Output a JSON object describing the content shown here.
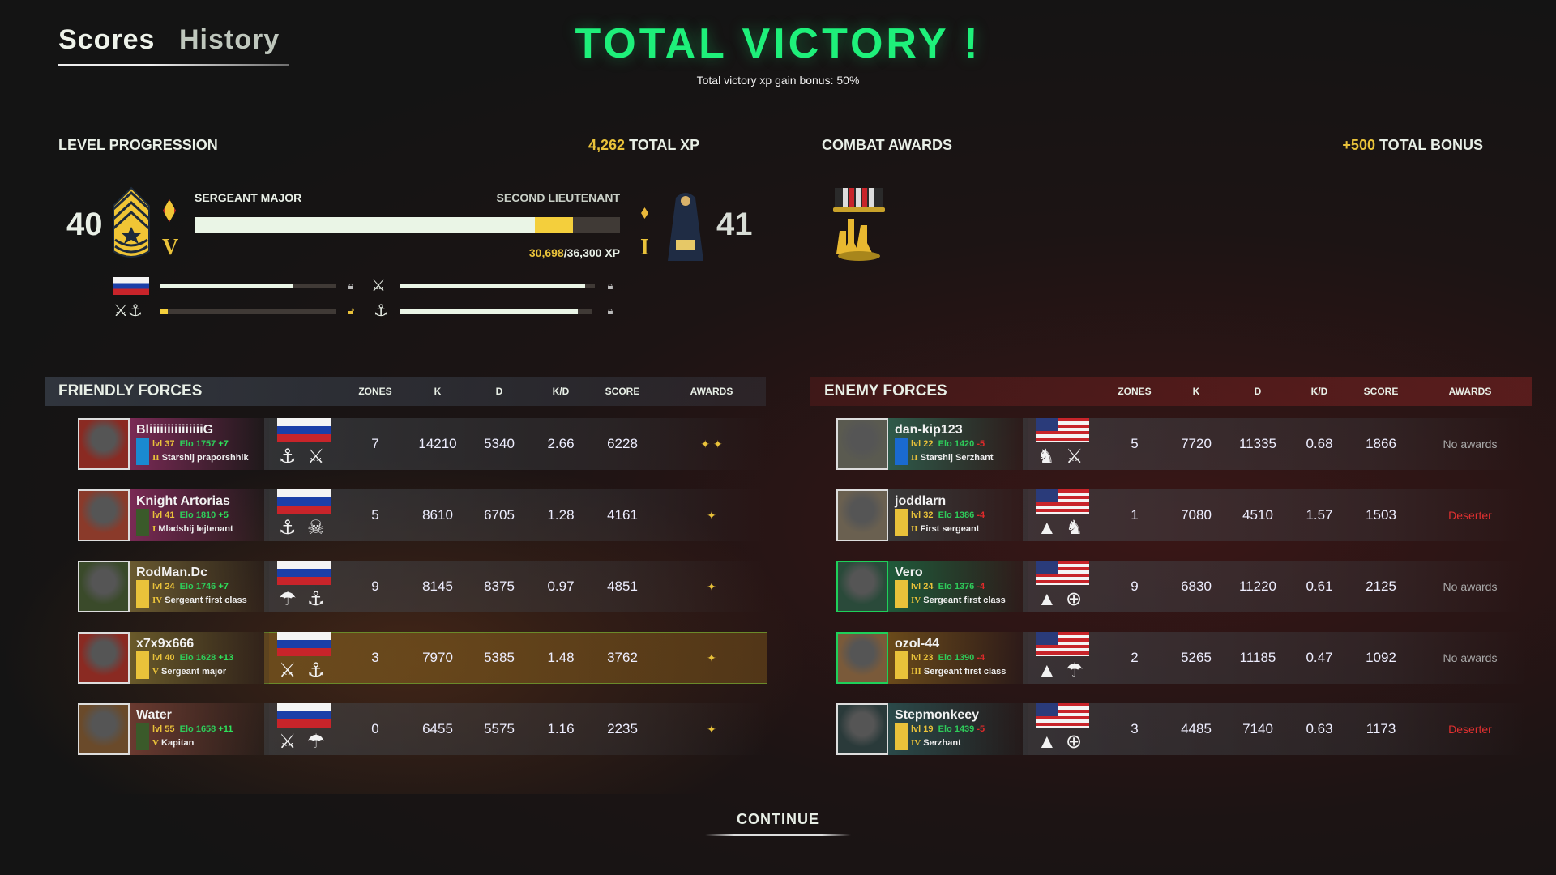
{
  "tabs": [
    {
      "label": "Scores",
      "active": true
    },
    {
      "label": "History",
      "active": false
    }
  ],
  "header": {
    "title": "TOTAL VICTORY !",
    "subtitle": "Total victory xp gain bonus: 50%",
    "title_color": "#1ef07a"
  },
  "level_progression": {
    "label": "LEVEL PROGRESSION",
    "total_xp_value": "4,262",
    "total_xp_label": "TOTAL XP",
    "current_level": "40",
    "current_rank": "SERGEANT MAJOR",
    "current_tier": "V",
    "next_level": "41",
    "next_rank": "SECOND LIEUTENANT",
    "next_tier": "I",
    "xp_current": "30,698",
    "xp_total": "/36,300 XP",
    "progress_base": 0.8,
    "progress_gain": 0.09,
    "sub_bars": [
      {
        "icon": "russia-flag",
        "progress": 0.75,
        "locked": true
      },
      {
        "icon": "crossed-rifles-icon",
        "progress": 0.95,
        "locked": true
      },
      {
        "icon": "rifles-anchor-icon",
        "progress": 0.04,
        "locked": false
      },
      {
        "icon": "anchor-icon",
        "progress": 0.93,
        "locked": true
      }
    ]
  },
  "combat_awards": {
    "label": "COMBAT AWARDS",
    "bonus_value": "+500",
    "bonus_label": "TOTAL BONUS",
    "awards": [
      "squad-medal-icon"
    ]
  },
  "columns": [
    "ZONES",
    "K",
    "D",
    "K/D",
    "SCORE",
    "AWARDS"
  ],
  "friendly": {
    "title": "FRIENDLY FORCES",
    "players": [
      {
        "name": "Bliiiiiiiiiiiiiii​G",
        "lvl": "lvl 37",
        "elo": "Elo 1757",
        "delta": "+7",
        "rank": "Starshij praporshhik",
        "tier": "II",
        "zones": "7",
        "k": "14210",
        "d": "5340",
        "kd": "2.66",
        "score": "6228",
        "awards": "✦ ✦"
      },
      {
        "name": "Knight Artorias",
        "lvl": "lvl 41",
        "elo": "Elo 1810",
        "delta": "+5",
        "rank": "Mladshij lejtenant",
        "tier": "I",
        "zones": "5",
        "k": "8610",
        "d": "6705",
        "kd": "1.28",
        "score": "4161",
        "awards": "✦"
      },
      {
        "name": "RodMan.Dc",
        "lvl": "lvl 24",
        "elo": "Elo 1746",
        "delta": "+7",
        "rank": "Sergeant first class",
        "tier": "IV",
        "zones": "9",
        "k": "8145",
        "d": "8375",
        "kd": "0.97",
        "score": "4851",
        "awards": "✦"
      },
      {
        "name": "x7x9x666",
        "lvl": "lvl 40",
        "elo": "Elo 1628",
        "delta": "+13",
        "rank": "Sergeant major",
        "tier": "V",
        "zones": "3",
        "k": "7970",
        "d": "5385",
        "kd": "1.48",
        "score": "3762",
        "awards": "✦"
      },
      {
        "name": "Water",
        "lvl": "lvl 55",
        "elo": "Elo 1658",
        "delta": "+11",
        "rank": "Kapitan",
        "tier": "V",
        "zones": "0",
        "k": "6455",
        "d": "5575",
        "kd": "1.16",
        "score": "2235",
        "awards": "✦"
      }
    ]
  },
  "enemy": {
    "title": "ENEMY FORCES",
    "players": [
      {
        "name": "dan-kip123",
        "lvl": "lvl 22",
        "elo": "Elo 1420",
        "delta": "-5",
        "rank": "Starshij Serzhant",
        "tier": "II",
        "zones": "5",
        "k": "7720",
        "d": "11335",
        "kd": "0.68",
        "score": "1866",
        "awards": "No awards"
      },
      {
        "name": "joddlarn",
        "lvl": "lvl 32",
        "elo": "Elo 1386",
        "delta": "-4",
        "rank": "First sergeant",
        "tier": "II",
        "zones": "1",
        "k": "7080",
        "d": "4510",
        "kd": "1.57",
        "score": "1503",
        "awards": "Deserter"
      },
      {
        "name": "Vero",
        "lvl": "lvl 24",
        "elo": "Elo 1376",
        "delta": "-4",
        "rank": "Sergeant first class",
        "tier": "IV",
        "zones": "9",
        "k": "6830",
        "d": "11220",
        "kd": "0.61",
        "score": "2125",
        "awards": "No awards"
      },
      {
        "name": "ozol-44",
        "lvl": "lvl 23",
        "elo": "Elo 1390",
        "delta": "-4",
        "rank": "Sergeant first class",
        "tier": "III",
        "zones": "2",
        "k": "5265",
        "d": "11185",
        "kd": "0.47",
        "score": "1092",
        "awards": "No awards"
      },
      {
        "name": "Stepmonkeey",
        "lvl": "lvl 19",
        "elo": "Elo 1439",
        "delta": "-5",
        "rank": "Serzhant",
        "tier": "IV",
        "zones": "3",
        "k": "4485",
        "d": "7140",
        "kd": "0.63",
        "score": "1173",
        "awards": "Deserter"
      }
    ]
  },
  "continue_label": "CONTINUE",
  "colors": {
    "gold": "#e9c23a",
    "elo": "#2ecc5a",
    "positive": "#2ee05a",
    "negative": "#e02a2a",
    "deserter": "#e03030",
    "no_awards": "#a8a8a8"
  }
}
